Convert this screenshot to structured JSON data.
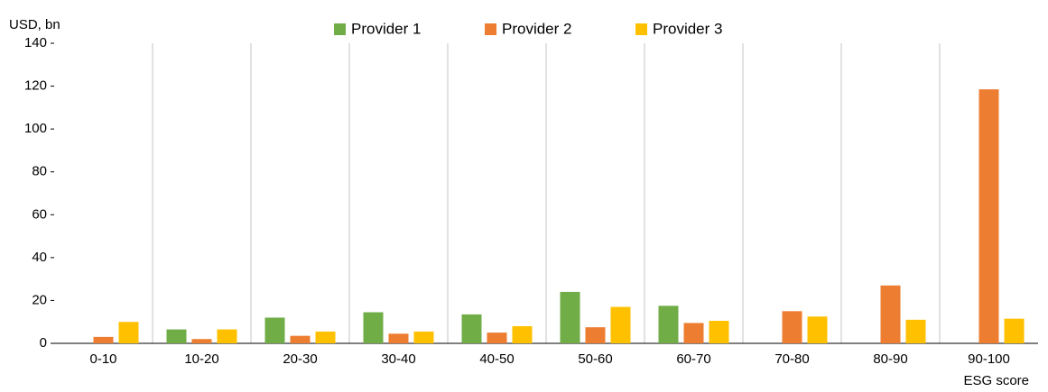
{
  "chart_data": {
    "type": "bar",
    "y_label": "USD, bn",
    "x_label": "ESG score",
    "categories": [
      "0-10",
      "10-20",
      "20-30",
      "30-40",
      "40-50",
      "50-60",
      "60-70",
      "70-80",
      "80-90",
      "90-100"
    ],
    "series": [
      {
        "name": "Provider 1",
        "color": "#70ad47",
        "values": [
          null,
          6.5,
          12,
          14.5,
          13.5,
          24,
          17.5,
          null,
          null,
          null
        ]
      },
      {
        "name": "Provider 2",
        "color": "#ed7d31",
        "values": [
          3,
          2,
          3.5,
          4.5,
          5,
          7.5,
          9.5,
          15,
          27,
          118.5
        ]
      },
      {
        "name": "Provider 3",
        "color": "#ffc000",
        "values": [
          10,
          6.5,
          5.5,
          5.5,
          8,
          17,
          10.5,
          12.5,
          11,
          11.5
        ]
      }
    ],
    "ylim": [
      0,
      140
    ],
    "yticks": [
      0,
      20,
      40,
      60,
      80,
      100,
      120,
      140
    ],
    "legend": "top"
  }
}
